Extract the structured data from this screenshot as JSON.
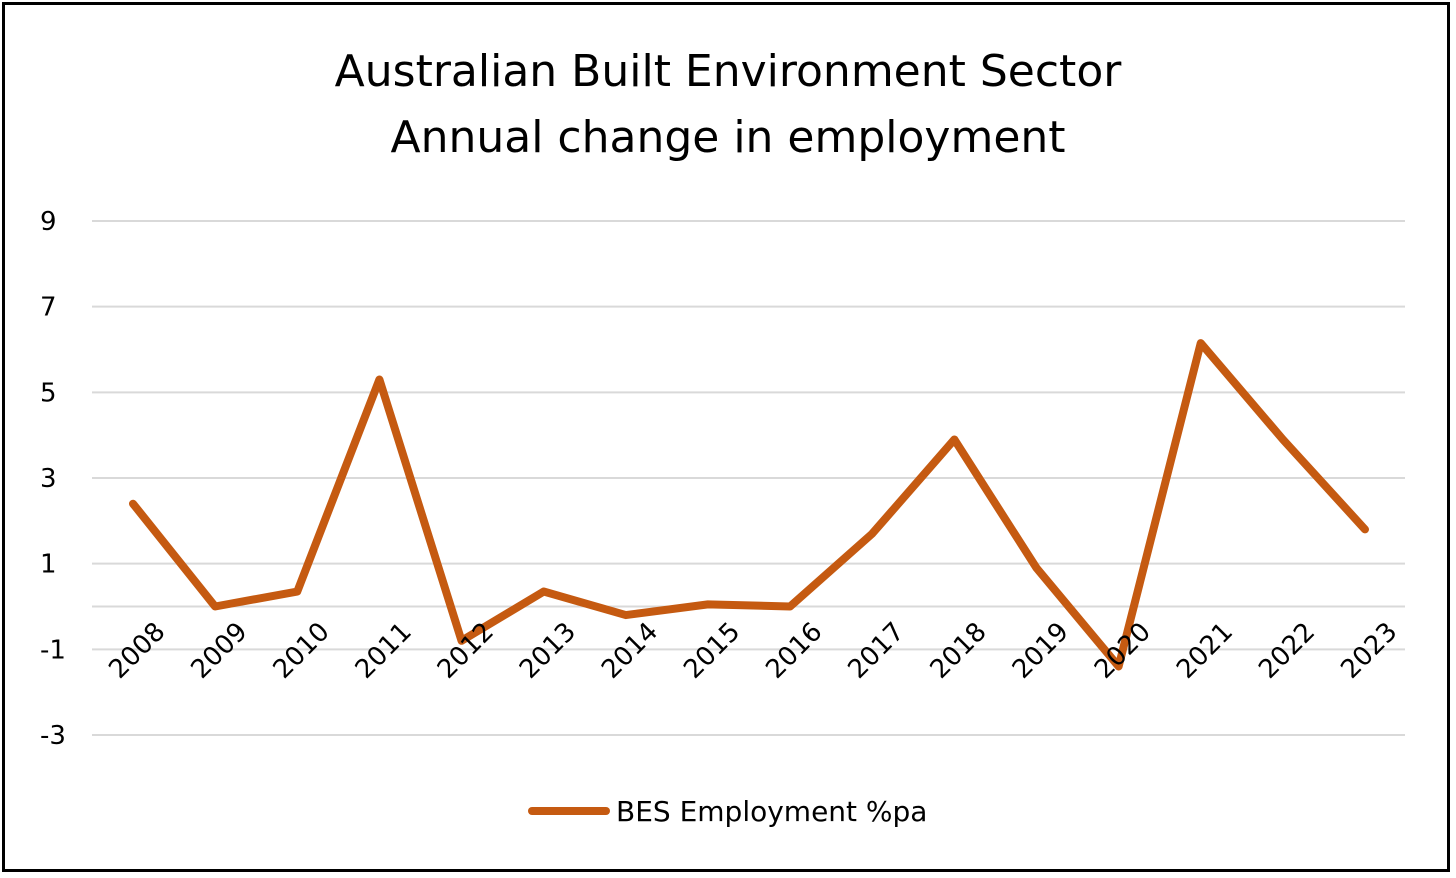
{
  "chart_data": {
    "type": "line",
    "title": "Australian Built Environment Sector",
    "subtitle": "Annual change in employment",
    "categories": [
      "2008",
      "2009",
      "2010",
      "2011",
      "2012",
      "2013",
      "2014",
      "2015",
      "2016",
      "2017",
      "2018",
      "2019",
      "2020",
      "2021",
      "2022",
      "2023"
    ],
    "series": [
      {
        "name": "BES Employment %pa",
        "color": "#C55A11",
        "values": [
          2.4,
          0.0,
          0.35,
          5.3,
          -0.8,
          0.35,
          -0.2,
          0.05,
          0.0,
          1.7,
          3.9,
          0.9,
          -1.4,
          6.15,
          3.9,
          1.8
        ]
      }
    ],
    "yticks": [
      9,
      7,
      5,
      3,
      1,
      -1,
      -3
    ],
    "ylim": [
      -3,
      9
    ],
    "grid": true,
    "legend": "bottom"
  }
}
